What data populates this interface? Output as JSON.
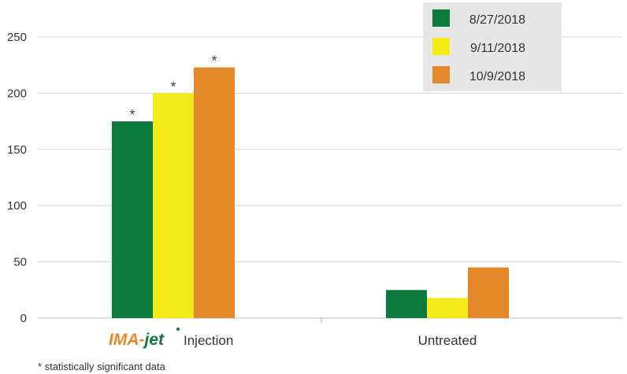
{
  "chart_data": {
    "type": "bar",
    "categories": [
      "Injection",
      "Untreated"
    ],
    "category_logo": [
      "IMA-jet",
      ""
    ],
    "series": [
      {
        "name": "8/27/2018",
        "values": [
          175,
          25
        ],
        "color": "#0d7a3d"
      },
      {
        "name": "9/11/2018",
        "values": [
          200,
          18
        ],
        "color": "#f4ea17"
      },
      {
        "name": "10/9/2018",
        "values": [
          223,
          45
        ],
        "color": "#e3892a"
      }
    ],
    "significance": [
      [
        "*",
        "*",
        "*"
      ],
      [
        "",
        "",
        ""
      ]
    ],
    "ylim": [
      0,
      250
    ],
    "yticks": [
      0,
      50,
      100,
      150,
      200,
      250
    ],
    "grid": true,
    "legend_position": "top-right",
    "xlabel": "",
    "ylabel": ""
  },
  "footnote": "* statistically significant data",
  "colors": {
    "grid": "#d4d4d4",
    "legend_bg": "#e6e6e6",
    "logo_orange": "#e3892a",
    "logo_green": "#0d7a3d"
  }
}
